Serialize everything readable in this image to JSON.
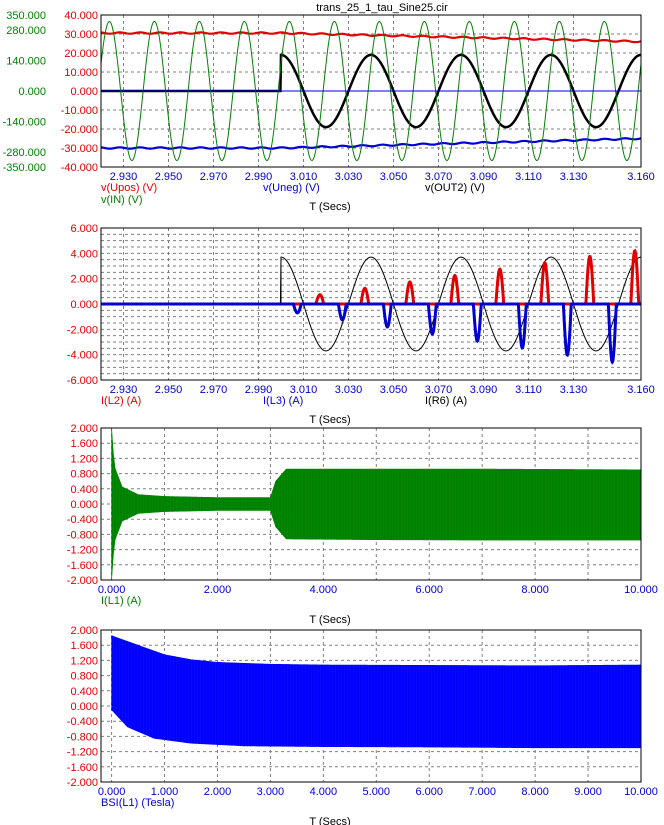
{
  "title": "trans_25_1_tau_Sine25.cir",
  "colors": {
    "red": "#e00000",
    "blue": "#0000d0",
    "green": "#008000",
    "black": "#000000",
    "axis_text": "#000000",
    "grid": "#808080"
  },
  "chart_data": [
    {
      "type": "line",
      "id": "p1",
      "xlabel": "T (Secs)",
      "xlim": [
        2.92,
        3.16
      ],
      "x_ticks": [
        "2.930",
        "2.950",
        "2.970",
        "2.990",
        "3.010",
        "3.030",
        "3.050",
        "3.070",
        "3.090",
        "3.110",
        "3.130",
        "3.160"
      ],
      "x_tick_values": [
        2.93,
        2.95,
        2.97,
        2.99,
        3.01,
        3.03,
        3.05,
        3.07,
        3.09,
        3.11,
        3.13,
        3.16
      ],
      "ylim": [
        -40,
        40
      ],
      "y_ticks": [
        "40.000",
        "30.000",
        "20.000",
        "10.000",
        "0.000",
        "-10.000",
        "-20.000",
        "-30.000",
        "-40.000"
      ],
      "y_tick_values": [
        40,
        30,
        20,
        10,
        0,
        -10,
        -20,
        -30,
        -40
      ],
      "y2lim": [
        -350,
        350
      ],
      "y2_ticks": [
        "350.000",
        "280.000",
        "140.000",
        "0.000",
        "-140.000",
        "-280.000",
        "-350.000"
      ],
      "y2_tick_values": [
        350,
        280,
        140,
        0,
        -140,
        -280,
        -350
      ],
      "series": [
        {
          "name": "v(Upos) (V)",
          "color": "#e00000",
          "axis": "y",
          "kind": "upos",
          "start": 30.5,
          "end": 26
        },
        {
          "name": "v(Uneg) (V)",
          "color": "#0000d0",
          "axis": "y",
          "kind": "uneg",
          "start": -30,
          "end": -25
        },
        {
          "name": "v(OUT2) (V)",
          "color": "#000000",
          "axis": "y",
          "kind": "out",
          "amplitude": 19,
          "start_time": 3.0,
          "period": 0.04
        },
        {
          "name": "v(IN) (V)",
          "color": "#008000",
          "axis": "y2",
          "kind": "sine",
          "amplitude": 320,
          "period": 0.02
        }
      ],
      "legend": [
        {
          "label": "v(Upos) (V)",
          "color": "#e00000",
          "pos": "left1"
        },
        {
          "label": "v(IN) (V)",
          "color": "#008000",
          "pos": "left2"
        },
        {
          "label": "v(Uneg) (V)",
          "color": "#0000d0",
          "pos": "mid1"
        },
        {
          "label": "v(OUT2) (V)",
          "color": "#000000",
          "pos": "right1"
        }
      ]
    },
    {
      "type": "line",
      "id": "p2",
      "xlabel": "T (Secs)",
      "xlim": [
        2.92,
        3.16
      ],
      "x_ticks": [
        "2.930",
        "2.950",
        "2.970",
        "2.990",
        "3.010",
        "3.030",
        "3.050",
        "3.070",
        "3.090",
        "3.110",
        "3.130",
        "3.160"
      ],
      "x_tick_values": [
        2.93,
        2.95,
        2.97,
        2.99,
        3.01,
        3.03,
        3.05,
        3.07,
        3.09,
        3.11,
        3.13,
        3.16
      ],
      "ylim": [
        -6,
        6
      ],
      "y_ticks": [
        "6.000",
        "4.000",
        "2.000",
        "0.000",
        "-2.000",
        "-4.000",
        "-6.000"
      ],
      "y_tick_values": [
        6,
        4,
        2,
        0,
        -2,
        -4,
        -6
      ],
      "series": [
        {
          "name": "I(R6) (A)",
          "color": "#000000",
          "kind": "r6",
          "amplitude": 3.7,
          "start_time": 3.0,
          "period": 0.04
        },
        {
          "name": "I(L2) (A)",
          "color": "#e00000",
          "kind": "pulse_pos",
          "peak_start": 0.3,
          "peak_end": 4.2,
          "period": 0.02
        },
        {
          "name": "I(L3) (A)",
          "color": "#0000d0",
          "kind": "pulse_neg",
          "peak_start": 0.5,
          "peak_end": 4.8,
          "period": 0.02
        }
      ],
      "legend": [
        {
          "label": "I(L2) (A)",
          "color": "#e00000",
          "pos": "left1"
        },
        {
          "label": "I(L3) (A)",
          "color": "#0000d0",
          "pos": "mid1"
        },
        {
          "label": "I(R6) (A)",
          "color": "#000000",
          "pos": "right1"
        }
      ]
    },
    {
      "type": "area",
      "id": "p3",
      "xlabel": "T (Secs)",
      "xlim": [
        -0.2,
        10
      ],
      "x_ticks": [
        "0.000",
        "2.000",
        "4.000",
        "6.000",
        "8.000",
        "10.000"
      ],
      "x_tick_values": [
        0,
        2,
        4,
        6,
        8,
        10
      ],
      "ylim": [
        -2,
        2
      ],
      "y_ticks": [
        "2.000",
        "1.600",
        "1.200",
        "0.800",
        "0.400",
        "0.000",
        "-0.400",
        "-0.800",
        "-1.200",
        "-1.600",
        "-2.000"
      ],
      "y_tick_values": [
        2,
        1.6,
        1.2,
        0.8,
        0.4,
        0,
        -0.4,
        -0.8,
        -1.2,
        -1.6,
        -2
      ],
      "series": [
        {
          "name": "I(L1) (A)",
          "color": "#008000",
          "upper": [
            [
              0,
              2.0
            ],
            [
              0.05,
              1.0
            ],
            [
              0.2,
              0.45
            ],
            [
              0.5,
              0.25
            ],
            [
              1.0,
              0.2
            ],
            [
              2.0,
              0.17
            ],
            [
              3.0,
              0.17
            ],
            [
              3.1,
              0.6
            ],
            [
              3.3,
              0.92
            ],
            [
              5.0,
              0.92
            ],
            [
              7.0,
              0.92
            ],
            [
              10.0,
              0.9
            ]
          ],
          "lower": [
            [
              0,
              -2.0
            ],
            [
              0.05,
              -1.0
            ],
            [
              0.2,
              -0.45
            ],
            [
              0.5,
              -0.25
            ],
            [
              1.0,
              -0.2
            ],
            [
              2.0,
              -0.17
            ],
            [
              3.0,
              -0.17
            ],
            [
              3.1,
              -0.6
            ],
            [
              3.3,
              -0.92
            ],
            [
              5.0,
              -0.94
            ],
            [
              7.0,
              -0.95
            ],
            [
              10.0,
              -0.95
            ]
          ]
        }
      ],
      "legend": [
        {
          "label": "I(L1) (A)",
          "color": "#008000",
          "pos": "left1"
        }
      ]
    },
    {
      "type": "area",
      "id": "p4",
      "xlabel": "T (Secs)",
      "xlim": [
        -0.2,
        10
      ],
      "x_ticks": [
        "0.000",
        "1.000",
        "2.000",
        "3.000",
        "4.000",
        "5.000",
        "6.000",
        "7.000",
        "8.000",
        "9.000",
        "10.000"
      ],
      "x_tick_values": [
        0,
        1,
        2,
        3,
        4,
        5,
        6,
        7,
        8,
        9,
        10
      ],
      "ylim": [
        -2,
        2
      ],
      "y_ticks": [
        "2.000",
        "1.600",
        "1.200",
        "0.800",
        "0.400",
        "0.000",
        "-0.400",
        "-0.800",
        "-1.200",
        "-1.600",
        "-2.000"
      ],
      "y_tick_values": [
        2,
        1.6,
        1.2,
        0.8,
        0.4,
        0,
        -0.4,
        -0.8,
        -1.2,
        -1.6,
        -2
      ],
      "series": [
        {
          "name": "BSI(L1) (Tesla)",
          "color": "#0000ff",
          "upper": [
            [
              0,
              1.85
            ],
            [
              0.5,
              1.6
            ],
            [
              1.0,
              1.35
            ],
            [
              1.5,
              1.22
            ],
            [
              2.0,
              1.15
            ],
            [
              3.0,
              1.1
            ],
            [
              4.0,
              1.08
            ],
            [
              6.0,
              1.07
            ],
            [
              8.0,
              1.06
            ],
            [
              10.0,
              1.08
            ]
          ],
          "lower": [
            [
              0,
              -0.1
            ],
            [
              0.3,
              -0.55
            ],
            [
              0.8,
              -0.85
            ],
            [
              1.5,
              -0.98
            ],
            [
              2.5,
              -1.05
            ],
            [
              4.0,
              -1.07
            ],
            [
              6.0,
              -1.08
            ],
            [
              8.0,
              -1.1
            ],
            [
              10.0,
              -1.1
            ]
          ]
        }
      ],
      "legend": [
        {
          "label": "BSI(L1) (Tesla)",
          "color": "#0000d0",
          "pos": "left1"
        }
      ]
    }
  ]
}
